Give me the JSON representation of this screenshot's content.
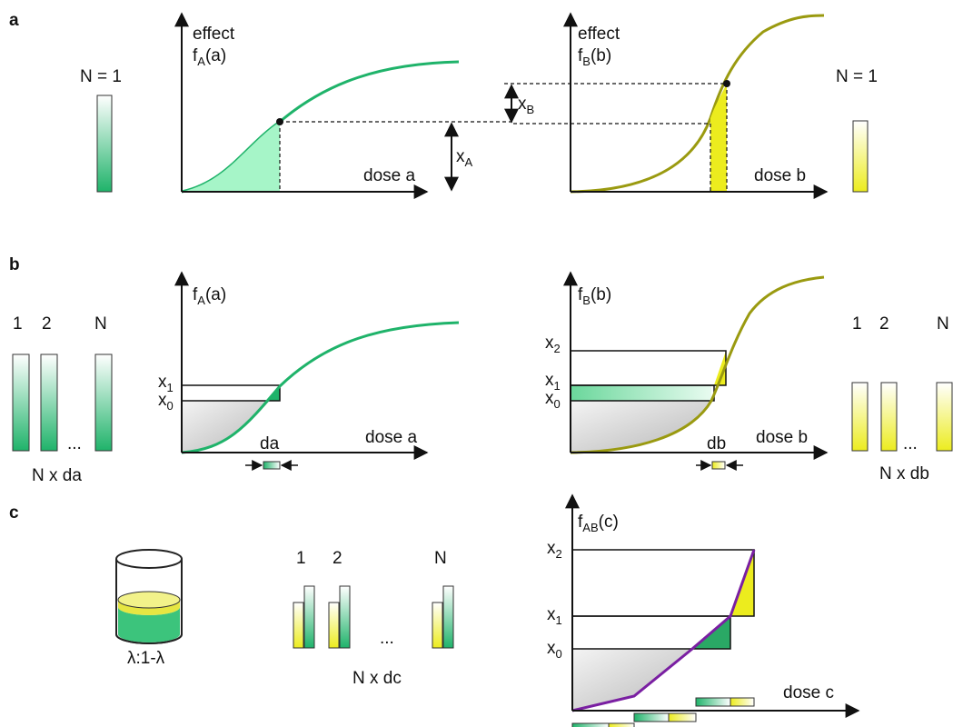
{
  "panels": {
    "a": "a",
    "b": "b",
    "c": "c"
  },
  "colors": {
    "green": "#1fb36a",
    "green_fill": "#a6f5c8",
    "olive": "#9a9a10",
    "yellow": "#ecec1e",
    "purple": "#7a1fa2",
    "gray": "#d8d8d8"
  },
  "a": {
    "left": {
      "n_label": "N = 1",
      "y_label_line1": "effect",
      "y_label_fn": "f",
      "y_label_sub": "A",
      "y_label_arg": "(a)",
      "x_label": "dose a"
    },
    "right": {
      "n_label": "N = 1",
      "y_label_line1": "effect",
      "y_label_fn": "f",
      "y_label_sub": "B",
      "y_label_arg": "(b)",
      "x_label": "dose b"
    },
    "xA": {
      "main": "x",
      "sub": "A"
    },
    "xB": {
      "main": "x",
      "sub": "B"
    }
  },
  "b": {
    "left": {
      "tube_labels": [
        "1",
        "2",
        "N"
      ],
      "ellipsis": "...",
      "count_label": "N x da",
      "y_label_fn": "f",
      "y_label_sub": "A",
      "y_label_arg": "(a)",
      "x1": {
        "main": "x",
        "sub": "1"
      },
      "x0": {
        "main": "x",
        "sub": "0"
      },
      "dose_small": "da",
      "x_label": "dose a"
    },
    "right": {
      "tube_labels": [
        "1",
        "2",
        "N"
      ],
      "ellipsis": "...",
      "count_label": "N x db",
      "y_label_fn": "f",
      "y_label_sub": "B",
      "y_label_arg": "(b)",
      "x2": {
        "main": "x",
        "sub": "2"
      },
      "x1": {
        "main": "x",
        "sub": "1"
      },
      "x0": {
        "main": "x",
        "sub": "0"
      },
      "dose_small": "db",
      "x_label": "dose b"
    }
  },
  "c": {
    "ratio_label": "λ:1-λ",
    "tube_labels": [
      "1",
      "2",
      "N"
    ],
    "ellipsis": "...",
    "count_label": "N x dc",
    "y_label_fn": "f",
    "y_label_sub": "AB",
    "y_label_arg": "(c)",
    "x2": {
      "main": "x",
      "sub": "2"
    },
    "x1": {
      "main": "x",
      "sub": "1"
    },
    "x0": {
      "main": "x",
      "sub": "0"
    },
    "x_label": "dose c"
  }
}
